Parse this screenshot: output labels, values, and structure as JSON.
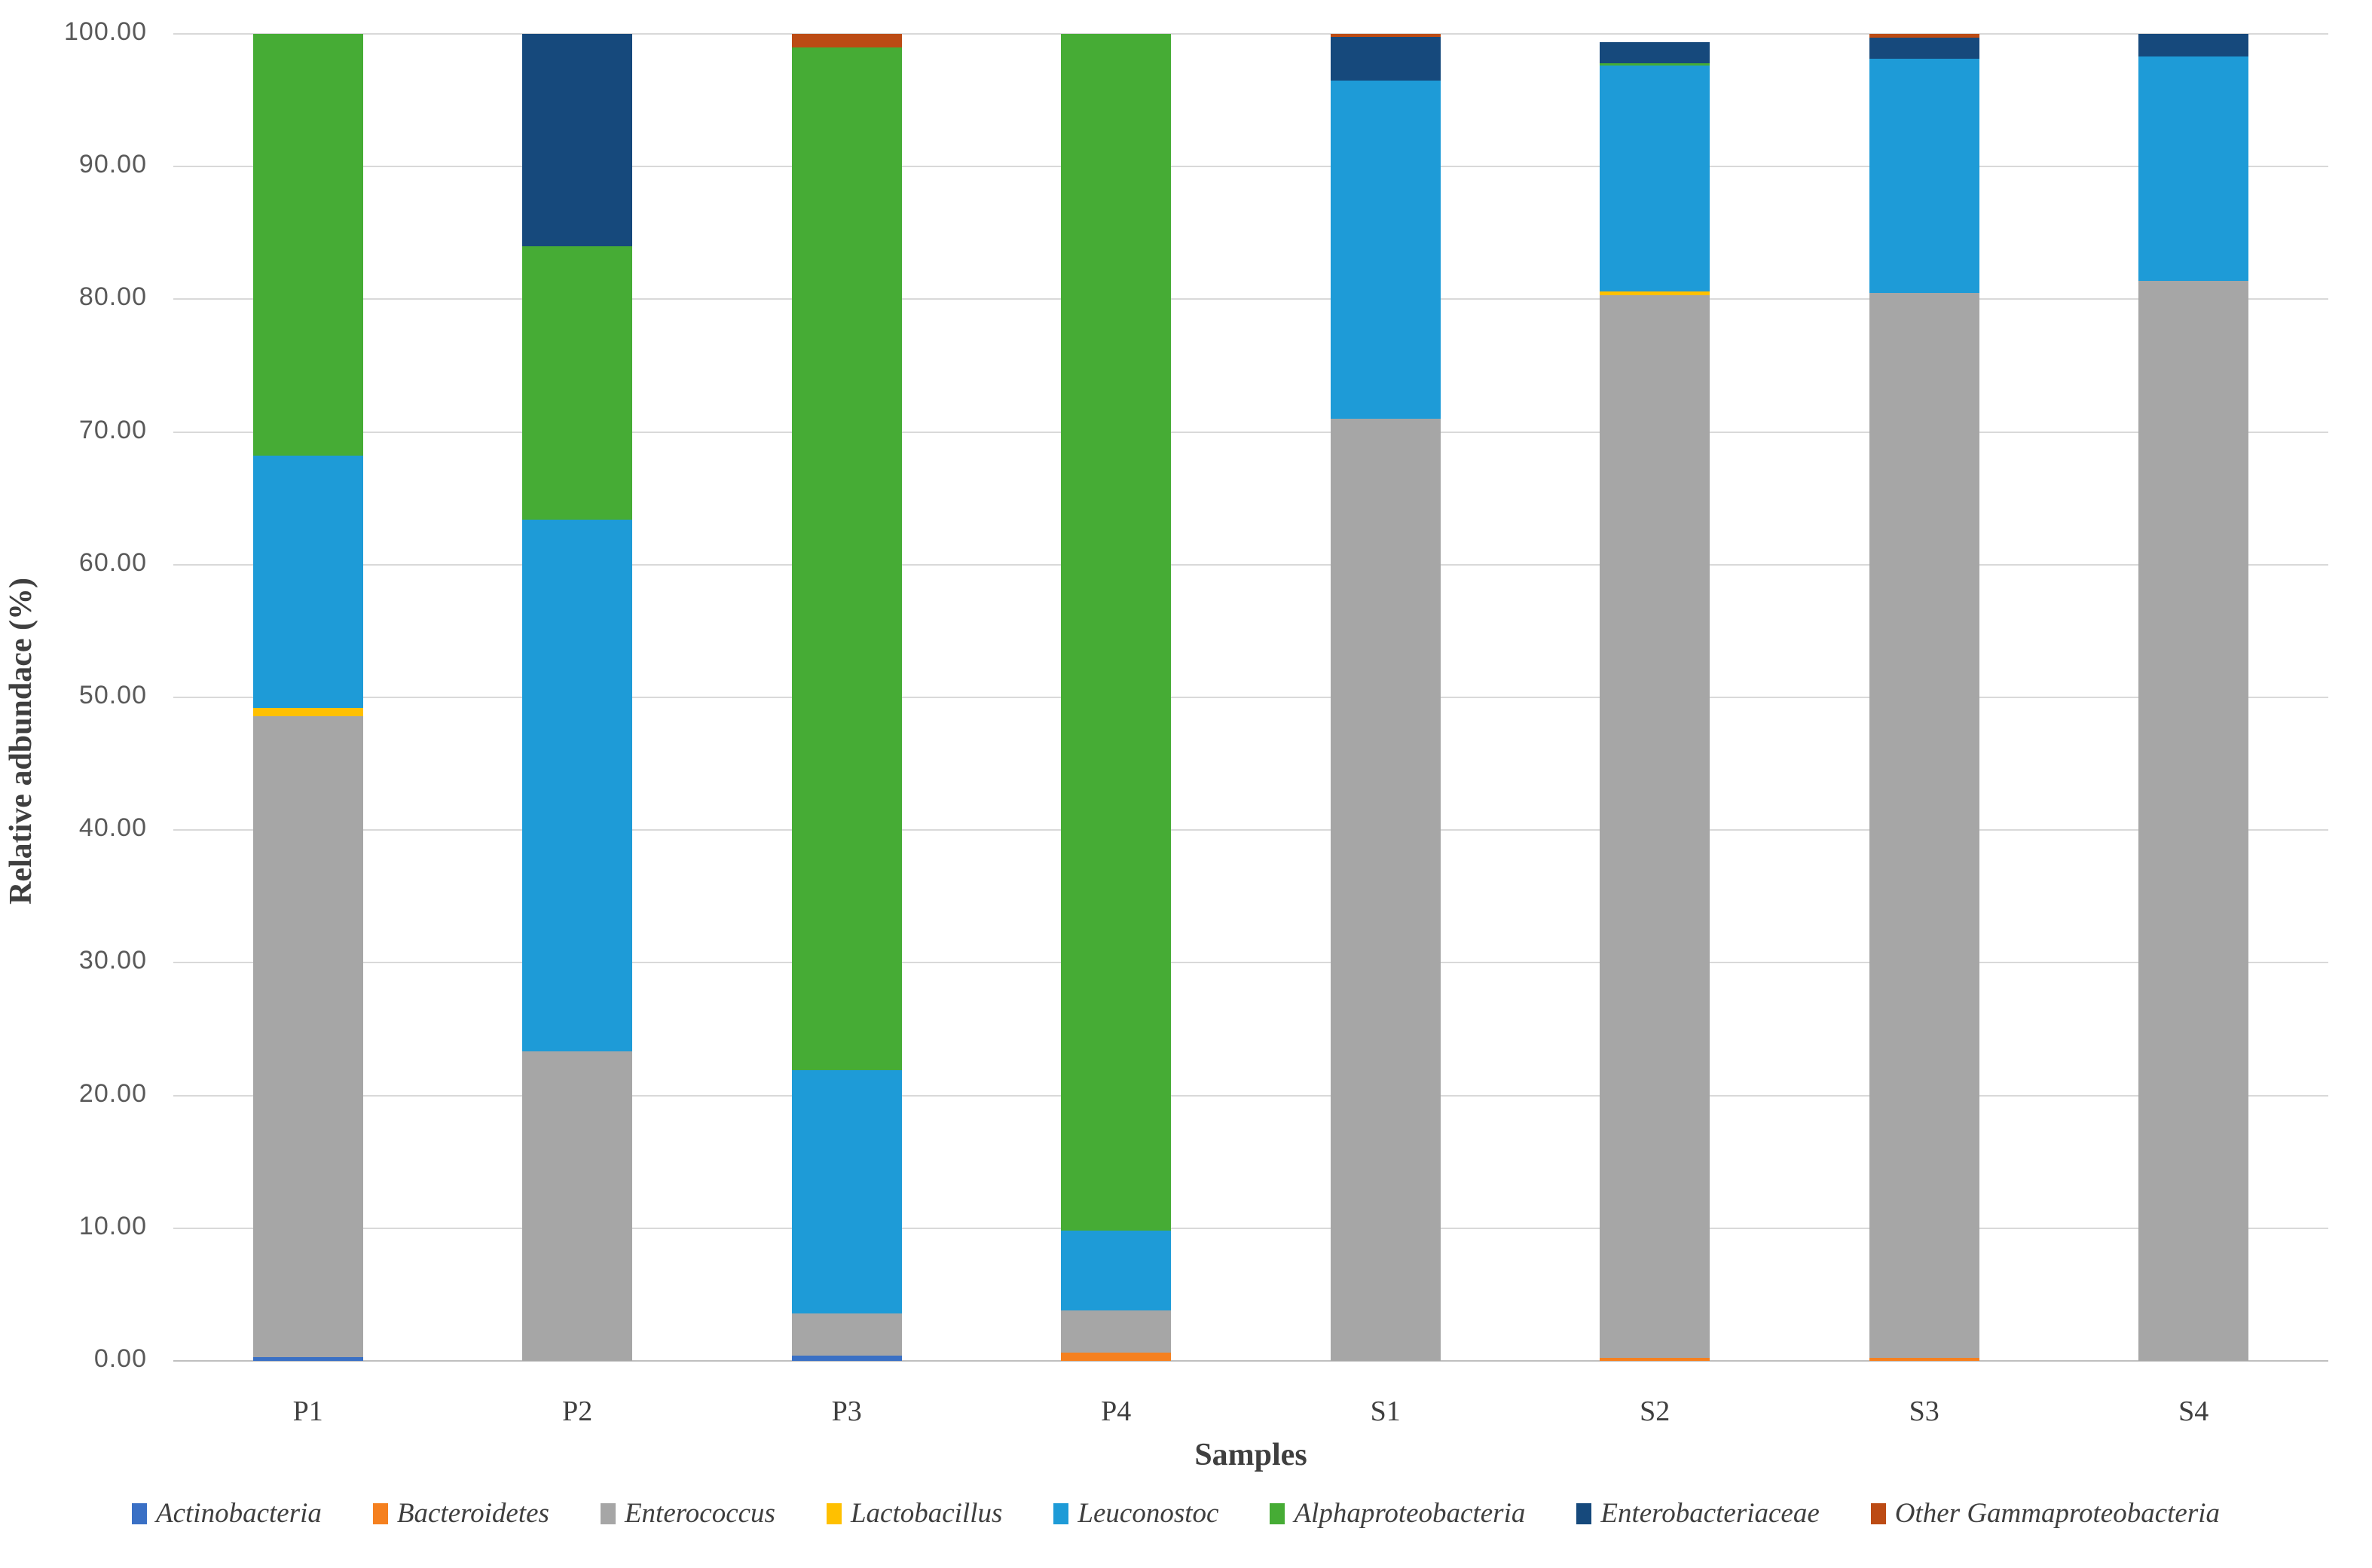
{
  "chart_data": {
    "type": "bar",
    "stacked": true,
    "title": "",
    "xlabel": "Samples",
    "ylabel": "Relative adbundace (%)",
    "ylim": [
      0,
      100
    ],
    "grid": true,
    "legend_position": "bottom",
    "ytick_labels": [
      "0.00",
      "10.00",
      "20.00",
      "30.00",
      "40.00",
      "50.00",
      "60.00",
      "70.00",
      "80.00",
      "90.00",
      "100.00"
    ],
    "categories": [
      "P1",
      "P2",
      "P3",
      "P4",
      "S1",
      "S2",
      "S3",
      "S4"
    ],
    "series": [
      {
        "name": "Actinobacteria",
        "color": "#3a70c5",
        "values": [
          0.3,
          0,
          0.4,
          0,
          0,
          0,
          0,
          0
        ]
      },
      {
        "name": "Bacteroidetes",
        "color": "#f5801f",
        "values": [
          0,
          0,
          0,
          0.6,
          0,
          0.25,
          0.2,
          0
        ]
      },
      {
        "name": "Enterococcus",
        "color": "#a6a6a6",
        "values": [
          48.3,
          23.3,
          3.2,
          3.2,
          71.0,
          80.05,
          80.3,
          81.4
        ]
      },
      {
        "name": "Lactobacillus",
        "color": "#ffc000",
        "values": [
          0.6,
          0,
          0,
          0,
          0,
          0.3,
          0,
          0
        ]
      },
      {
        "name": "Leuconostoc",
        "color": "#1e9bd7",
        "values": [
          19.0,
          40.1,
          18.3,
          6.0,
          25.5,
          17.0,
          17.6,
          16.9
        ]
      },
      {
        "name": "Alphaproteobacteria",
        "color": "#46ac35",
        "values": [
          31.8,
          20.6,
          77.1,
          90.2,
          0,
          0.2,
          0,
          0
        ]
      },
      {
        "name": "Enterobacteriaceae",
        "color": "#16497c",
        "values": [
          0,
          16.0,
          0,
          0,
          3.3,
          1.6,
          1.6,
          1.7
        ]
      },
      {
        "name": "Other Gammaproteobacteria",
        "color": "#bc4b14",
        "values": [
          0,
          0,
          1.0,
          0,
          0.2,
          0,
          0.3,
          0
        ]
      }
    ]
  }
}
